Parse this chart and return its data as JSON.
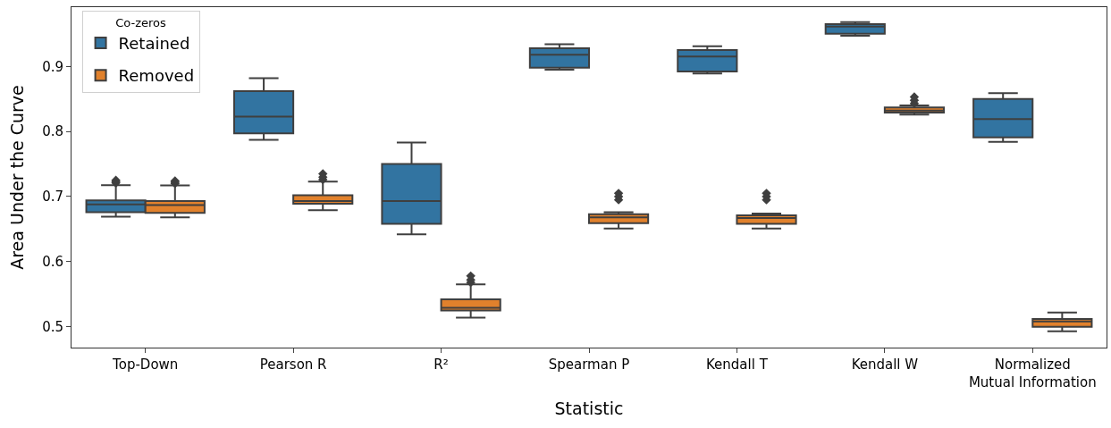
{
  "chart_data": {
    "type": "box",
    "xlabel": "Statistic",
    "ylabel": "Area Under the Curve",
    "legend_title": "Co-zeros",
    "legend": "top left",
    "categories": [
      "Top-Down",
      "Pearson R",
      "R²",
      "Spearman P",
      "Kendall T",
      "Kendall W",
      "Normalized\nMutual Information"
    ],
    "ylim": [
      0.468,
      0.991
    ],
    "yticks": [
      0.5,
      0.6,
      0.7,
      0.8,
      0.9
    ],
    "marker": "diamond",
    "series": [
      {
        "name": "Retained",
        "color": "#3274a1",
        "boxes": [
          {
            "low": 0.669,
            "q1": 0.676,
            "median": 0.688,
            "q3": 0.694,
            "high": 0.7175,
            "outliers": [
              0.721,
              0.723,
              0.725
            ]
          },
          {
            "low": 0.787,
            "q1": 0.797,
            "median": 0.823,
            "q3": 0.862,
            "high": 0.882
          },
          {
            "low": 0.642,
            "q1": 0.658,
            "median": 0.693,
            "q3": 0.75,
            "high": 0.783
          },
          {
            "low": 0.895,
            "q1": 0.898,
            "median": 0.918,
            "q3": 0.928,
            "high": 0.934
          },
          {
            "low": 0.889,
            "q1": 0.892,
            "median": 0.915,
            "q3": 0.925,
            "high": 0.931
          },
          {
            "low": 0.947,
            "q1": 0.95,
            "median": 0.961,
            "q3": 0.965,
            "high": 0.968
          },
          {
            "low": 0.784,
            "q1": 0.791,
            "median": 0.819,
            "q3": 0.85,
            "high": 0.859
          }
        ]
      },
      {
        "name": "Removed",
        "color": "#e1812c",
        "boxes": [
          {
            "low": 0.668,
            "q1": 0.675,
            "median": 0.687,
            "q3": 0.693,
            "high": 0.717,
            "outliers": [
              0.72,
              0.722,
              0.724
            ]
          },
          {
            "low": 0.679,
            "q1": 0.689,
            "median": 0.693,
            "q3": 0.702,
            "high": 0.723,
            "outliers": [
              0.726,
              0.73,
              0.735
            ]
          },
          {
            "low": 0.514,
            "q1": 0.525,
            "median": 0.529,
            "q3": 0.542,
            "high": 0.565,
            "outliers": [
              0.568,
              0.572,
              0.578
            ]
          },
          {
            "low": 0.651,
            "q1": 0.659,
            "median": 0.668,
            "q3": 0.673,
            "high": 0.676,
            "outliers": [
              0.695,
              0.7,
              0.705
            ]
          },
          {
            "low": 0.651,
            "q1": 0.658,
            "median": 0.667,
            "q3": 0.671,
            "high": 0.674,
            "outliers": [
              0.695,
              0.7,
              0.705
            ]
          },
          {
            "low": 0.826,
            "q1": 0.829,
            "median": 0.832,
            "q3": 0.837,
            "high": 0.84,
            "outliers": [
              0.843,
              0.848,
              0.853
            ]
          },
          {
            "low": 0.493,
            "q1": 0.5,
            "median": 0.508,
            "q3": 0.512,
            "high": 0.522
          }
        ]
      }
    ]
  }
}
